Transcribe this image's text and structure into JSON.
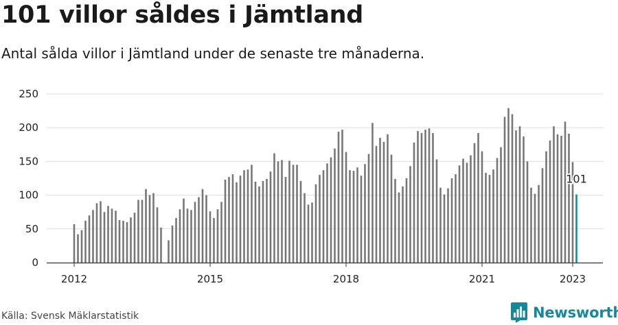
{
  "header": {
    "title": "101 villor såldes i Jämtland",
    "subtitle": "Antal sålda villor i Jämtland under de senaste tre månaderna."
  },
  "footer": {
    "source": "Källa: Svensk Mäklarstatistik",
    "brand": "Newsworthy"
  },
  "colors": {
    "bar": "#777777",
    "highlight": "#17889a",
    "grid": "#dddddd",
    "brand": "#17889a"
  },
  "chart_data": {
    "type": "bar",
    "title": "",
    "xlabel": "",
    "ylabel": "",
    "ylim": [
      0,
      250
    ],
    "y_ticks": [
      0,
      50,
      100,
      150,
      200,
      250
    ],
    "x_ticks": [
      {
        "label": "2012",
        "index": 0
      },
      {
        "label": "2015",
        "index": 36
      },
      {
        "label": "2018",
        "index": 72
      },
      {
        "label": "2021",
        "index": 108
      },
      {
        "label": "2023",
        "index": 132
      }
    ],
    "start_period": "2012-01",
    "period_unit": "month",
    "highlight_label": "101",
    "values": [
      57,
      42,
      48,
      62,
      70,
      78,
      88,
      91,
      75,
      84,
      80,
      77,
      63,
      62,
      60,
      67,
      74,
      93,
      93,
      109,
      100,
      103,
      82,
      52,
      null,
      33,
      55,
      66,
      79,
      95,
      80,
      78,
      90,
      97,
      109,
      100,
      76,
      66,
      79,
      90,
      123,
      127,
      131,
      119,
      129,
      137,
      138,
      145,
      120,
      113,
      121,
      124,
      135,
      162,
      150,
      152,
      127,
      151,
      145,
      145,
      121,
      103,
      86,
      89,
      116,
      130,
      137,
      147,
      156,
      169,
      194,
      197,
      164,
      137,
      136,
      141,
      129,
      146,
      161,
      207,
      173,
      185,
      179,
      190,
      160,
      124,
      104,
      113,
      125,
      143,
      178,
      195,
      192,
      197,
      199,
      192,
      153,
      111,
      101,
      110,
      125,
      131,
      144,
      154,
      148,
      159,
      177,
      192,
      165,
      133,
      130,
      138,
      155,
      171,
      216,
      229,
      220,
      196,
      202,
      187,
      150,
      111,
      102,
      115,
      140,
      165,
      181,
      202,
      190,
      188,
      209,
      191,
      149,
      101
    ]
  }
}
